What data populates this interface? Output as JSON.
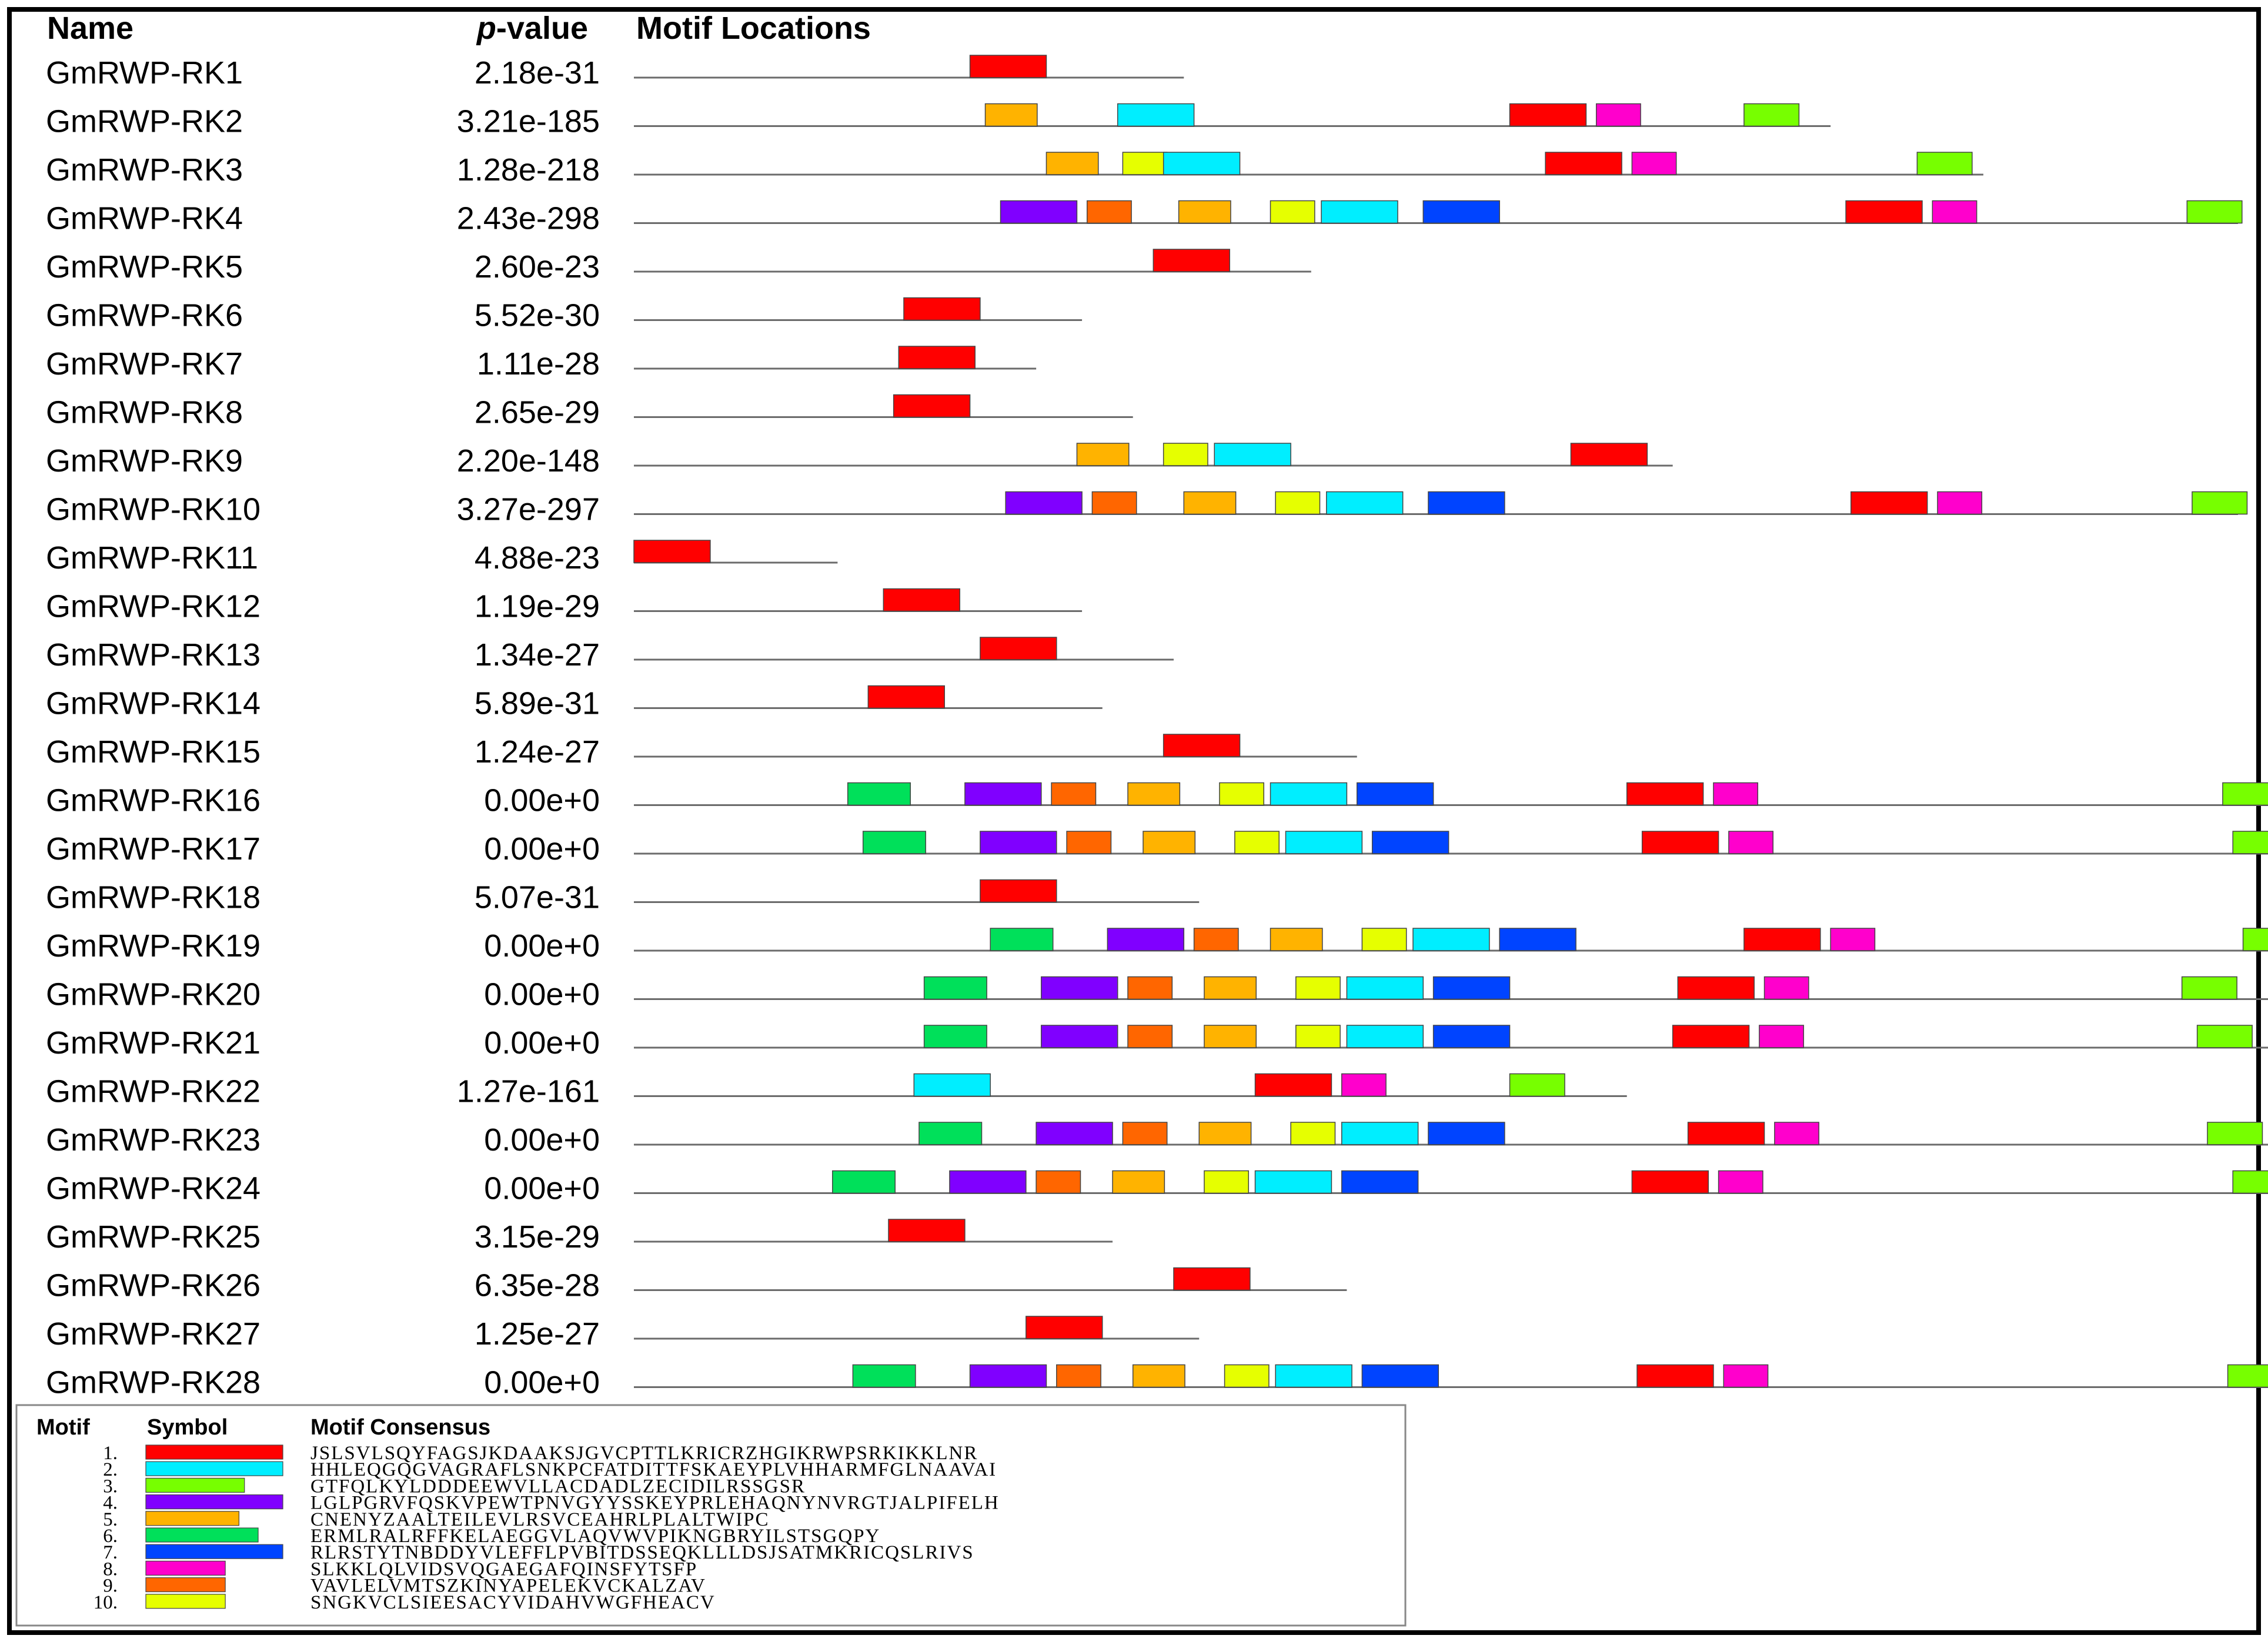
{
  "headers": {
    "name": "Name",
    "p_prefix": "p",
    "p_suffix": "-value",
    "locations": "Motif Locations"
  },
  "legend_headers": {
    "motif": "Motif",
    "symbol": "Symbol",
    "consensus": "Motif Consensus"
  },
  "motifs": [
    {
      "id": "1",
      "number": "1.",
      "color": "#ff0000",
      "width": 50,
      "consensus": "JSLSVLSQYFAGSJKDAAKSJGVCPTTLKRICRZHGIKRWPSRKIKKLNR"
    },
    {
      "id": "2",
      "number": "2.",
      "color": "#00eeff",
      "width": 50,
      "consensus": "HHLEQGQGVAGRAFLSNKPCFATDITTFSKAEYPLVHHARMFGLNAAVAI"
    },
    {
      "id": "3",
      "number": "3.",
      "color": "#77ff00",
      "width": 36,
      "consensus": "GTFQLKYLDDDEEWVLLACDADLZECIDILRSSGSR"
    },
    {
      "id": "4",
      "number": "4.",
      "color": "#8000ff",
      "width": 50,
      "consensus": "LGLPGRVFQSKVPEWTPNVGYYSSKEYPRLEHAQNYNVRGTJALPIFELH"
    },
    {
      "id": "5",
      "number": "5.",
      "color": "#ffb300",
      "width": 34,
      "consensus": "CNENYZAALTEILEVLRSVCEAHRLPLALTWIPC"
    },
    {
      "id": "6",
      "number": "6.",
      "color": "#00e05a",
      "width": 41,
      "consensus": "ERMLRALRFFKELAEGGVLAQVWVPIKNGBRYILSTSGQPY"
    },
    {
      "id": "7",
      "number": "7.",
      "color": "#0044ff",
      "width": 50,
      "consensus": "RLRSTYTNBDDYVLEFFLPVBITDSSEQKLLLDSJSATMKRICQSLRIVS"
    },
    {
      "id": "8",
      "number": "8.",
      "color": "#ff00cc",
      "width": 29,
      "consensus": "SLKKLQLVIDSVQGAEGAFQINSFYTSFP"
    },
    {
      "id": "9",
      "number": "9.",
      "color": "#ff6600",
      "width": 29,
      "consensus": "VAVLELVMTSZKINYAPELEKVCKALZAV"
    },
    {
      "id": "10",
      "number": "10.",
      "color": "#e6ff00",
      "width": 29,
      "consensus": "SNGKVCLSIEESACYVIDAHVWGFHEACV"
    }
  ],
  "sequences": [
    {
      "name": "GmRWP-RK1",
      "pvalue": "2.18e-31",
      "length": 1080,
      "sites": [
        {
          "m": "1",
          "s": 660
        }
      ]
    },
    {
      "name": "GmRWP-RK2",
      "pvalue": "3.21e-185",
      "length": 2350,
      "sites": [
        {
          "m": "5",
          "s": 690
        },
        {
          "m": "2",
          "s": 950
        },
        {
          "m": "1",
          "s": 1720
        },
        {
          "m": "8",
          "s": 1890
        },
        {
          "m": "3",
          "s": 2180
        }
      ]
    },
    {
      "name": "GmRWP-RK3",
      "pvalue": "1.28e-218",
      "length": 2650,
      "sites": [
        {
          "m": "5",
          "s": 810
        },
        {
          "m": "10",
          "s": 960
        },
        {
          "m": "2",
          "s": 1040
        },
        {
          "m": "1",
          "s": 1790
        },
        {
          "m": "8",
          "s": 1960
        },
        {
          "m": "3",
          "s": 2520
        }
      ]
    },
    {
      "name": "GmRWP-RK4",
      "pvalue": "2.43e-298",
      "length": 3150,
      "sites": [
        {
          "m": "4",
          "s": 720
        },
        {
          "m": "9",
          "s": 890
        },
        {
          "m": "5",
          "s": 1070
        },
        {
          "m": "10",
          "s": 1250
        },
        {
          "m": "2",
          "s": 1350
        },
        {
          "m": "7",
          "s": 1550
        },
        {
          "m": "1",
          "s": 2380
        },
        {
          "m": "8",
          "s": 2550
        },
        {
          "m": "3",
          "s": 3050
        }
      ]
    },
    {
      "name": "GmRWP-RK5",
      "pvalue": "2.60e-23",
      "length": 1330,
      "sites": [
        {
          "m": "1",
          "s": 1020
        }
      ]
    },
    {
      "name": "GmRWP-RK6",
      "pvalue": "5.52e-30",
      "length": 880,
      "sites": [
        {
          "m": "1",
          "s": 530
        }
      ]
    },
    {
      "name": "GmRWP-RK7",
      "pvalue": "1.11e-28",
      "length": 790,
      "sites": [
        {
          "m": "1",
          "s": 520
        }
      ]
    },
    {
      "name": "GmRWP-RK8",
      "pvalue": "2.65e-29",
      "length": 980,
      "sites": [
        {
          "m": "1",
          "s": 510
        }
      ]
    },
    {
      "name": "GmRWP-RK9",
      "pvalue": "2.20e-148",
      "length": 2040,
      "sites": [
        {
          "m": "5",
          "s": 870
        },
        {
          "m": "10",
          "s": 1040
        },
        {
          "m": "2",
          "s": 1140
        },
        {
          "m": "1",
          "s": 1840
        }
      ]
    },
    {
      "name": "GmRWP-RK10",
      "pvalue": "3.27e-297",
      "length": 3150,
      "sites": [
        {
          "m": "4",
          "s": 730
        },
        {
          "m": "9",
          "s": 900
        },
        {
          "m": "5",
          "s": 1080
        },
        {
          "m": "10",
          "s": 1260
        },
        {
          "m": "2",
          "s": 1360
        },
        {
          "m": "7",
          "s": 1560
        },
        {
          "m": "1",
          "s": 2390
        },
        {
          "m": "8",
          "s": 2560
        },
        {
          "m": "3",
          "s": 3060
        }
      ]
    },
    {
      "name": "GmRWP-RK11",
      "pvalue": "4.88e-23",
      "length": 400,
      "sites": [
        {
          "m": "1",
          "s": 0
        }
      ]
    },
    {
      "name": "GmRWP-RK12",
      "pvalue": "1.19e-29",
      "length": 880,
      "sites": [
        {
          "m": "1",
          "s": 490
        }
      ]
    },
    {
      "name": "GmRWP-RK13",
      "pvalue": "1.34e-27",
      "length": 1060,
      "sites": [
        {
          "m": "1",
          "s": 680
        }
      ]
    },
    {
      "name": "GmRWP-RK14",
      "pvalue": "5.89e-31",
      "length": 920,
      "sites": [
        {
          "m": "1",
          "s": 460
        }
      ]
    },
    {
      "name": "GmRWP-RK15",
      "pvalue": "1.24e-27",
      "length": 1420,
      "sites": [
        {
          "m": "1",
          "s": 1040
        }
      ]
    },
    {
      "name": "GmRWP-RK16",
      "pvalue": "0.00e+0",
      "length": 3380,
      "sites": [
        {
          "m": "6",
          "s": 420
        },
        {
          "m": "4",
          "s": 650
        },
        {
          "m": "9",
          "s": 820
        },
        {
          "m": "5",
          "s": 970
        },
        {
          "m": "10",
          "s": 1150
        },
        {
          "m": "2",
          "s": 1250
        },
        {
          "m": "7",
          "s": 1420
        },
        {
          "m": "1",
          "s": 1950
        },
        {
          "m": "8",
          "s": 2120
        },
        {
          "m": "3",
          "s": 3120
        }
      ]
    },
    {
      "name": "GmRWP-RK17",
      "pvalue": "0.00e+0",
      "length": 3380,
      "sites": [
        {
          "m": "6",
          "s": 450
        },
        {
          "m": "4",
          "s": 680
        },
        {
          "m": "9",
          "s": 850
        },
        {
          "m": "5",
          "s": 1000
        },
        {
          "m": "10",
          "s": 1180
        },
        {
          "m": "2",
          "s": 1280
        },
        {
          "m": "7",
          "s": 1450
        },
        {
          "m": "1",
          "s": 1980
        },
        {
          "m": "8",
          "s": 2150
        },
        {
          "m": "3",
          "s": 3140
        }
      ]
    },
    {
      "name": "GmRWP-RK18",
      "pvalue": "5.07e-31",
      "length": 1110,
      "sites": [
        {
          "m": "1",
          "s": 680
        }
      ]
    },
    {
      "name": "GmRWP-RK19",
      "pvalue": "0.00e+0",
      "length": 3400,
      "sites": [
        {
          "m": "6",
          "s": 700
        },
        {
          "m": "4",
          "s": 930
        },
        {
          "m": "9",
          "s": 1100
        },
        {
          "m": "5",
          "s": 1250
        },
        {
          "m": "10",
          "s": 1430
        },
        {
          "m": "2",
          "s": 1530
        },
        {
          "m": "7",
          "s": 1700
        },
        {
          "m": "1",
          "s": 2180
        },
        {
          "m": "8",
          "s": 2350
        },
        {
          "m": "3",
          "s": 3160
        }
      ]
    },
    {
      "name": "GmRWP-RK20",
      "pvalue": "0.00e+0",
      "length": 3360,
      "sites": [
        {
          "m": "6",
          "s": 570
        },
        {
          "m": "4",
          "s": 800
        },
        {
          "m": "9",
          "s": 970
        },
        {
          "m": "5",
          "s": 1120
        },
        {
          "m": "10",
          "s": 1300
        },
        {
          "m": "2",
          "s": 1400
        },
        {
          "m": "7",
          "s": 1570
        },
        {
          "m": "1",
          "s": 2050
        },
        {
          "m": "8",
          "s": 2220
        },
        {
          "m": "3",
          "s": 3040
        }
      ]
    },
    {
      "name": "GmRWP-RK21",
      "pvalue": "0.00e+0",
      "length": 3390,
      "sites": [
        {
          "m": "6",
          "s": 570
        },
        {
          "m": "4",
          "s": 800
        },
        {
          "m": "9",
          "s": 970
        },
        {
          "m": "5",
          "s": 1120
        },
        {
          "m": "10",
          "s": 1300
        },
        {
          "m": "2",
          "s": 1400
        },
        {
          "m": "7",
          "s": 1570
        },
        {
          "m": "1",
          "s": 2040
        },
        {
          "m": "8",
          "s": 2210
        },
        {
          "m": "3",
          "s": 3070
        }
      ]
    },
    {
      "name": "GmRWP-RK22",
      "pvalue": "1.27e-161",
      "length": 1950,
      "sites": [
        {
          "m": "2",
          "s": 550
        },
        {
          "m": "1",
          "s": 1220
        },
        {
          "m": "8",
          "s": 1390
        },
        {
          "m": "3",
          "s": 1720
        }
      ]
    },
    {
      "name": "GmRWP-RK23",
      "pvalue": "0.00e+0",
      "length": 3370,
      "sites": [
        {
          "m": "6",
          "s": 560
        },
        {
          "m": "4",
          "s": 790
        },
        {
          "m": "9",
          "s": 960
        },
        {
          "m": "5",
          "s": 1110
        },
        {
          "m": "10",
          "s": 1290
        },
        {
          "m": "2",
          "s": 1390
        },
        {
          "m": "7",
          "s": 1560
        },
        {
          "m": "1",
          "s": 2070
        },
        {
          "m": "8",
          "s": 2240
        },
        {
          "m": "3",
          "s": 3090
        }
      ]
    },
    {
      "name": "GmRWP-RK24",
      "pvalue": "0.00e+0",
      "length": 3370,
      "sites": [
        {
          "m": "6",
          "s": 390
        },
        {
          "m": "4",
          "s": 620
        },
        {
          "m": "9",
          "s": 790
        },
        {
          "m": "5",
          "s": 940
        },
        {
          "m": "10",
          "s": 1120
        },
        {
          "m": "2",
          "s": 1220
        },
        {
          "m": "7",
          "s": 1390
        },
        {
          "m": "1",
          "s": 1960
        },
        {
          "m": "8",
          "s": 2130
        },
        {
          "m": "3",
          "s": 3140
        }
      ]
    },
    {
      "name": "GmRWP-RK25",
      "pvalue": "3.15e-29",
      "length": 940,
      "sites": [
        {
          "m": "1",
          "s": 500
        }
      ]
    },
    {
      "name": "GmRWP-RK26",
      "pvalue": "6.35e-28",
      "length": 1400,
      "sites": [
        {
          "m": "1",
          "s": 1060
        }
      ]
    },
    {
      "name": "GmRWP-RK27",
      "pvalue": "1.25e-27",
      "length": 1110,
      "sites": [
        {
          "m": "1",
          "s": 770
        }
      ]
    },
    {
      "name": "GmRWP-RK28",
      "pvalue": "0.00e+0",
      "length": 3380,
      "sites": [
        {
          "m": "6",
          "s": 430
        },
        {
          "m": "4",
          "s": 660
        },
        {
          "m": "9",
          "s": 830
        },
        {
          "m": "5",
          "s": 980
        },
        {
          "m": "10",
          "s": 1160
        },
        {
          "m": "2",
          "s": 1260
        },
        {
          "m": "7",
          "s": 1430
        },
        {
          "m": "1",
          "s": 1970
        },
        {
          "m": "8",
          "s": 2140
        },
        {
          "m": "3",
          "s": 3130
        }
      ]
    }
  ]
}
